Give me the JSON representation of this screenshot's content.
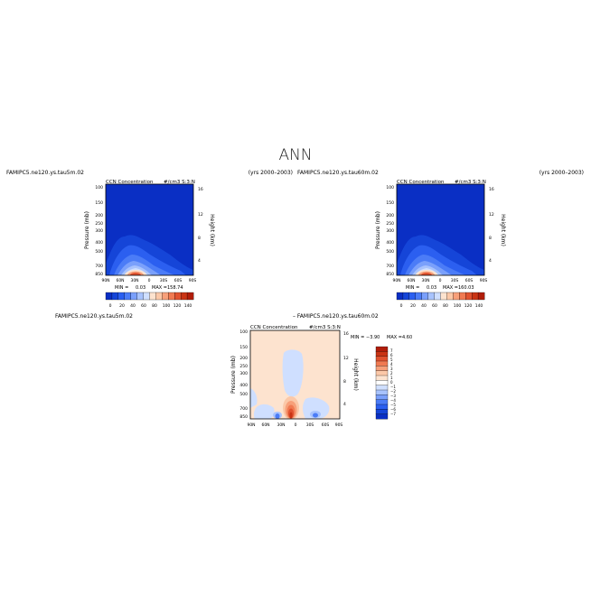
{
  "page_title": "ANN",
  "colors": {
    "deep_blue": "#0a2fc4",
    "blue_ramp": [
      "#0a2fc4",
      "#1545d8",
      "#2b5ff0",
      "#4b7cf7",
      "#7aa0fb",
      "#a8c3fd",
      "#cfdfff"
    ],
    "red_ramp": [
      "#fde3cf",
      "#fbc8a8",
      "#f7a07a",
      "#f07a52",
      "#e0522f",
      "#c93414",
      "#b01d0a"
    ]
  },
  "chart_data": [
    {
      "id": "panel-left",
      "type": "heatmap",
      "case_label": "FAMIPC5.ne120.ys.tau5m.02",
      "years_label": "(yrs 2000–2003)",
      "title": "CCN Concentration",
      "units": "#/cm3 S:3:N",
      "ylabel": "Pressure (mb)",
      "ylabel_right": "Height (km)",
      "x_ticks": [
        "90N",
        "60N",
        "30N",
        "0",
        "30S",
        "60S",
        "90S"
      ],
      "y_ticks": [
        "100",
        "150",
        "200",
        "250",
        "300",
        "400",
        "500",
        "700",
        "850"
      ],
      "y_right_ticks": [
        "16",
        "12",
        "8",
        "4"
      ],
      "min_label": "MIN =",
      "min_value": "0.03",
      "max_label": "MAX =",
      "max_value": "158.74",
      "colorbar_ticks": [
        "0",
        "20",
        "40",
        "60",
        "80",
        "100",
        "120",
        "140"
      ]
    },
    {
      "id": "panel-right",
      "type": "heatmap",
      "case_label": "FAMIPC5.ne120.ys.tau60m.02",
      "years_label": "(yrs 2000–2003)",
      "title": "CCN Concentration",
      "units": "#/cm3 S:3:N",
      "ylabel": "Pressure (mb)",
      "ylabel_right": "Height (km)",
      "x_ticks": [
        "90N",
        "60N",
        "30N",
        "0",
        "30S",
        "60S",
        "90S"
      ],
      "y_ticks": [
        "100",
        "150",
        "200",
        "250",
        "300",
        "400",
        "500",
        "700",
        "850"
      ],
      "y_right_ticks": [
        "16",
        "12",
        "8",
        "4"
      ],
      "min_label": "MIN =",
      "min_value": "0.03",
      "max_label": "MAX =",
      "max_value": "160.03",
      "colorbar_ticks": [
        "0",
        "20",
        "40",
        "60",
        "80",
        "100",
        "120",
        "140"
      ]
    },
    {
      "id": "panel-diff",
      "type": "heatmap",
      "case_label": "FAMIPC5.ne120.ys.tau5m.02",
      "diff_label": "–  FAMIPC5.ne120.ys.tau60m.02",
      "title": "CCN Concentration",
      "units": "#/cm3 S:3:N",
      "ylabel": "Pressure (mb)",
      "ylabel_right": "Height (km)",
      "x_ticks": [
        "90N",
        "60N",
        "30N",
        "0",
        "30S",
        "60S",
        "90S"
      ],
      "y_ticks": [
        "100",
        "150",
        "200",
        "250",
        "300",
        "400",
        "500",
        "700",
        "850"
      ],
      "y_right_ticks": [
        "16",
        "12",
        "8",
        "4"
      ],
      "min_label": "MIN =",
      "min_value": "−3.90",
      "max_label": "MAX =",
      "max_value": "4.60",
      "colorbar_ticks": [
        "7",
        "6",
        "5",
        "4",
        "3",
        "2",
        "1",
        "0",
        "−1",
        "−2",
        "−3",
        "−4",
        "−5",
        "−6",
        "−7"
      ]
    }
  ]
}
